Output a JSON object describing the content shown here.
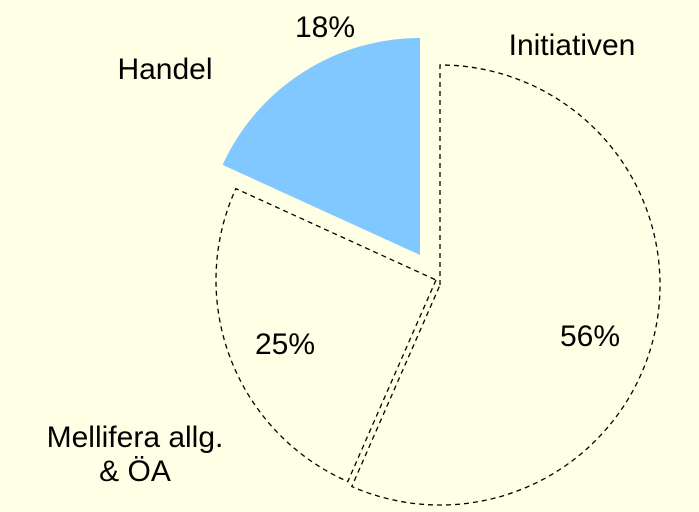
{
  "chart_data": {
    "type": "pie",
    "categories": [
      "Initiativen",
      "Mellifera allg.\n& ÖA",
      "Handel"
    ],
    "values": [
      56,
      25,
      18
    ],
    "value_labels": [
      "56%",
      "25%",
      "18%"
    ],
    "colors": [
      "#ffffe5",
      "#ffffe5",
      "#80c8ff"
    ],
    "dashed": [
      true,
      true,
      false
    ]
  }
}
